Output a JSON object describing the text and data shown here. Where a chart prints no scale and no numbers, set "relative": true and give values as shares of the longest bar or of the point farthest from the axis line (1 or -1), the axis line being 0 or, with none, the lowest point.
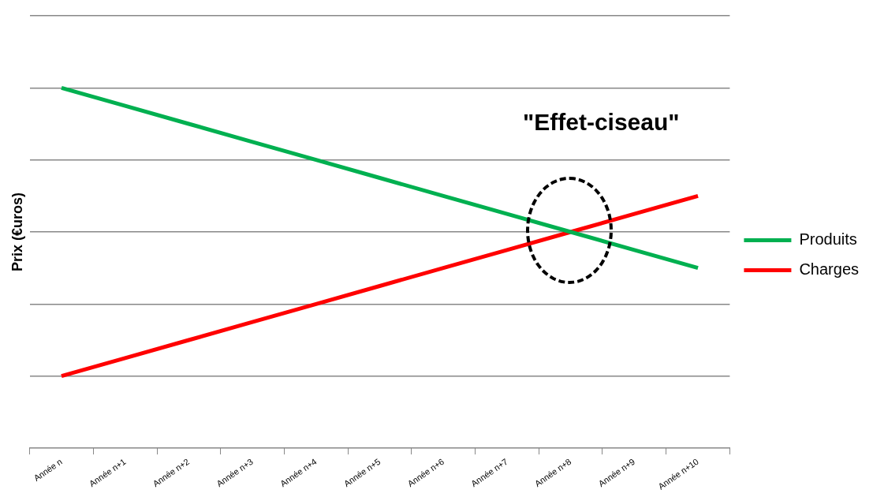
{
  "chart_data": {
    "type": "line",
    "ylabel": "Prix (€uros)",
    "relative": true,
    "grid": "y",
    "legend": "right",
    "marker": "none",
    "line_style": "solid",
    "categories": [
      "Année n",
      "Année n+1",
      "Année n+2",
      "Année n+3",
      "Année n+4",
      "Année n+5",
      "Année n+6",
      "Année n+7",
      "Année n+8",
      "Année n+9",
      "Année n+10"
    ],
    "series": [
      {
        "name": "Produits",
        "color": "#00b050",
        "values": [
          1,
          0.95,
          0.9,
          0.85,
          0.8,
          0.75,
          0.7,
          0.65,
          0.6,
          0.55,
          0.5
        ]
      },
      {
        "name": "Charges",
        "color": "#ff0000",
        "values": [
          0.2,
          0.25,
          0.3,
          0.35,
          0.4,
          0.45,
          0.5,
          0.55,
          0.6,
          0.65,
          0.7
        ]
      }
    ],
    "annotations": [
      "\"Effet-ciseau\""
    ]
  }
}
